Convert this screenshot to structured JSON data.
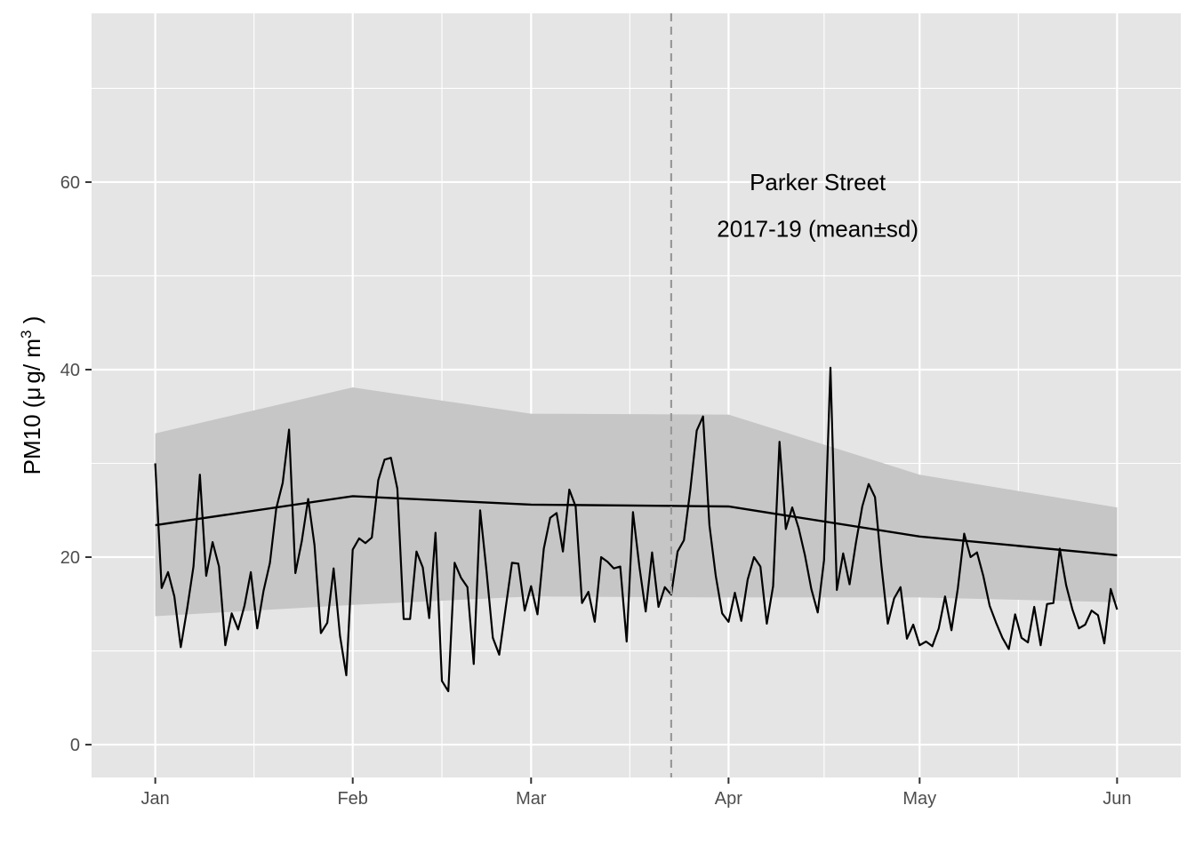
{
  "chart_data": {
    "type": "line",
    "ylabel": "PM10 (μg/m³)",
    "ylabel_parts": {
      "main": "PM10 (",
      "mu": "μ",
      "g": "g/ m",
      "sup": "3",
      "close": " )"
    },
    "ylim": [
      -3.5,
      78
    ],
    "xlim": [
      "2020-12-22",
      "2021-06-11"
    ],
    "y_ticks": [
      0,
      20,
      40,
      60
    ],
    "y_tick_labels": [
      "0",
      "20",
      "40",
      "60"
    ],
    "x_ticks": [
      "2021-01-01",
      "2021-02-01",
      "2021-03-01",
      "2021-04-01",
      "2021-05-01",
      "2021-06-01"
    ],
    "x_tick_labels": [
      "Jan",
      "Feb",
      "Mar",
      "Apr",
      "May",
      "Jun"
    ],
    "grid": true,
    "annotations": [
      {
        "text": "Parker Street",
        "x": "2021-04-15",
        "y": 60
      },
      {
        "text": "2017-19 (mean±sd)",
        "x": "2021-04-15",
        "y": 55
      }
    ],
    "vline": {
      "x": "2021-03-23",
      "style": "dashed"
    },
    "series": [
      {
        "role": "daily",
        "start_date": "2021-01-01",
        "values": [
          30.0,
          16.7,
          18.4,
          15.8,
          10.4,
          14.5,
          19.0,
          28.8,
          18.0,
          21.6,
          19.0,
          10.6,
          14.0,
          12.3,
          14.8,
          18.4,
          12.4,
          16.4,
          19.4,
          25.2,
          27.9,
          33.6,
          18.3,
          21.7,
          26.2,
          21.3,
          11.9,
          13.0,
          18.8,
          11.6,
          7.4,
          20.8,
          22.0,
          21.5,
          22.1,
          28.2,
          30.4,
          30.6,
          27.3,
          13.4,
          13.4,
          20.6,
          18.9,
          13.5,
          22.6,
          6.8,
          5.7,
          19.4,
          17.8,
          16.8,
          8.6,
          25.0,
          18.5,
          11.4,
          9.6,
          14.5,
          19.4,
          19.3,
          14.3,
          16.9,
          13.9,
          20.9,
          24.2,
          24.7,
          20.6,
          27.2,
          25.4,
          15.1,
          16.3,
          13.1,
          20.0,
          19.5,
          18.8,
          19.0,
          11.0,
          24.8,
          19.0,
          14.2,
          20.5,
          14.7,
          16.8,
          16.0,
          20.6,
          21.8,
          27.2,
          33.5,
          35.0,
          23.4,
          18.0,
          14.0,
          13.1,
          16.2,
          13.2,
          17.6,
          20.0,
          19.0,
          12.9,
          16.9,
          32.3,
          23.0,
          25.3,
          23.1,
          20.2,
          16.6,
          14.1,
          19.7,
          40.2,
          16.5,
          20.4,
          17.1,
          21.5,
          25.4,
          27.8,
          26.4,
          19.1,
          12.9,
          15.6,
          16.8,
          11.3,
          12.8,
          10.6,
          11.0,
          10.5,
          12.4,
          15.8,
          12.2,
          16.7,
          22.5,
          20.0,
          20.5,
          18.0,
          14.8,
          13.0,
          11.4,
          10.2,
          13.9,
          11.4,
          10.9,
          14.7,
          10.6,
          15.0,
          15.1,
          20.9,
          17.0,
          14.4,
          12.4,
          12.8,
          14.3,
          13.8,
          10.8,
          16.6,
          14.4
        ]
      },
      {
        "role": "mean",
        "points": [
          [
            "2021-01-01",
            23.4
          ],
          [
            "2021-02-01",
            26.5
          ],
          [
            "2021-03-01",
            25.6
          ],
          [
            "2021-04-01",
            25.4
          ],
          [
            "2021-05-01",
            22.2
          ],
          [
            "2021-06-01",
            20.2
          ]
        ]
      },
      {
        "role": "band",
        "upper": [
          [
            "2021-01-01",
            33.2
          ],
          [
            "2021-02-01",
            38.1
          ],
          [
            "2021-03-01",
            35.3
          ],
          [
            "2021-04-01",
            35.2
          ],
          [
            "2021-05-01",
            28.8
          ],
          [
            "2021-06-01",
            25.3
          ]
        ],
        "lower": [
          [
            "2021-01-01",
            13.7
          ],
          [
            "2021-02-01",
            14.9
          ],
          [
            "2021-03-01",
            15.8
          ],
          [
            "2021-04-01",
            15.7
          ],
          [
            "2021-05-01",
            15.7
          ],
          [
            "2021-06-01",
            15.2
          ]
        ]
      }
    ]
  },
  "colors": {
    "panel_bg": "#e5e5e5",
    "grid": "#ffffff",
    "band": "#c6c6c6",
    "line": "#000000",
    "vline": "#999999",
    "tick": "#333333"
  }
}
